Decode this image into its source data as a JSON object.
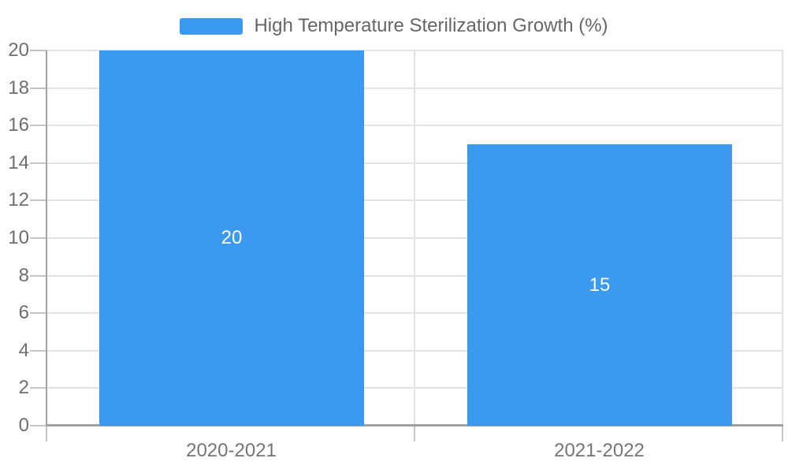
{
  "legend": {
    "label": "High Temperature Sterilization Growth (%)"
  },
  "chart_data": {
    "type": "bar",
    "title": "",
    "categories": [
      "2020-2021",
      "2021-2022"
    ],
    "values": [
      20,
      15
    ],
    "data_labels": [
      "20",
      "15"
    ],
    "series": [
      {
        "name": "High Temperature Sterilization Growth (%)",
        "values": [
          20,
          15
        ]
      }
    ],
    "xlabel": "",
    "ylabel": "",
    "ylim": [
      0,
      20
    ],
    "yticks": [
      0,
      2,
      4,
      6,
      8,
      10,
      12,
      14,
      16,
      18,
      20
    ],
    "grid": true,
    "legend_position": "top"
  },
  "colors": {
    "bar": "#3B99EF",
    "bar_label": "#ffffff",
    "grid_line": "#e4e4e4",
    "axis_line": "#a2a2a2",
    "baseline": "#a0a0a0",
    "tick": "#c6c6c6",
    "y_label": "#6e6e6e",
    "x_label": "#757575",
    "legend_text": "#666666",
    "background": "#ffffff"
  }
}
